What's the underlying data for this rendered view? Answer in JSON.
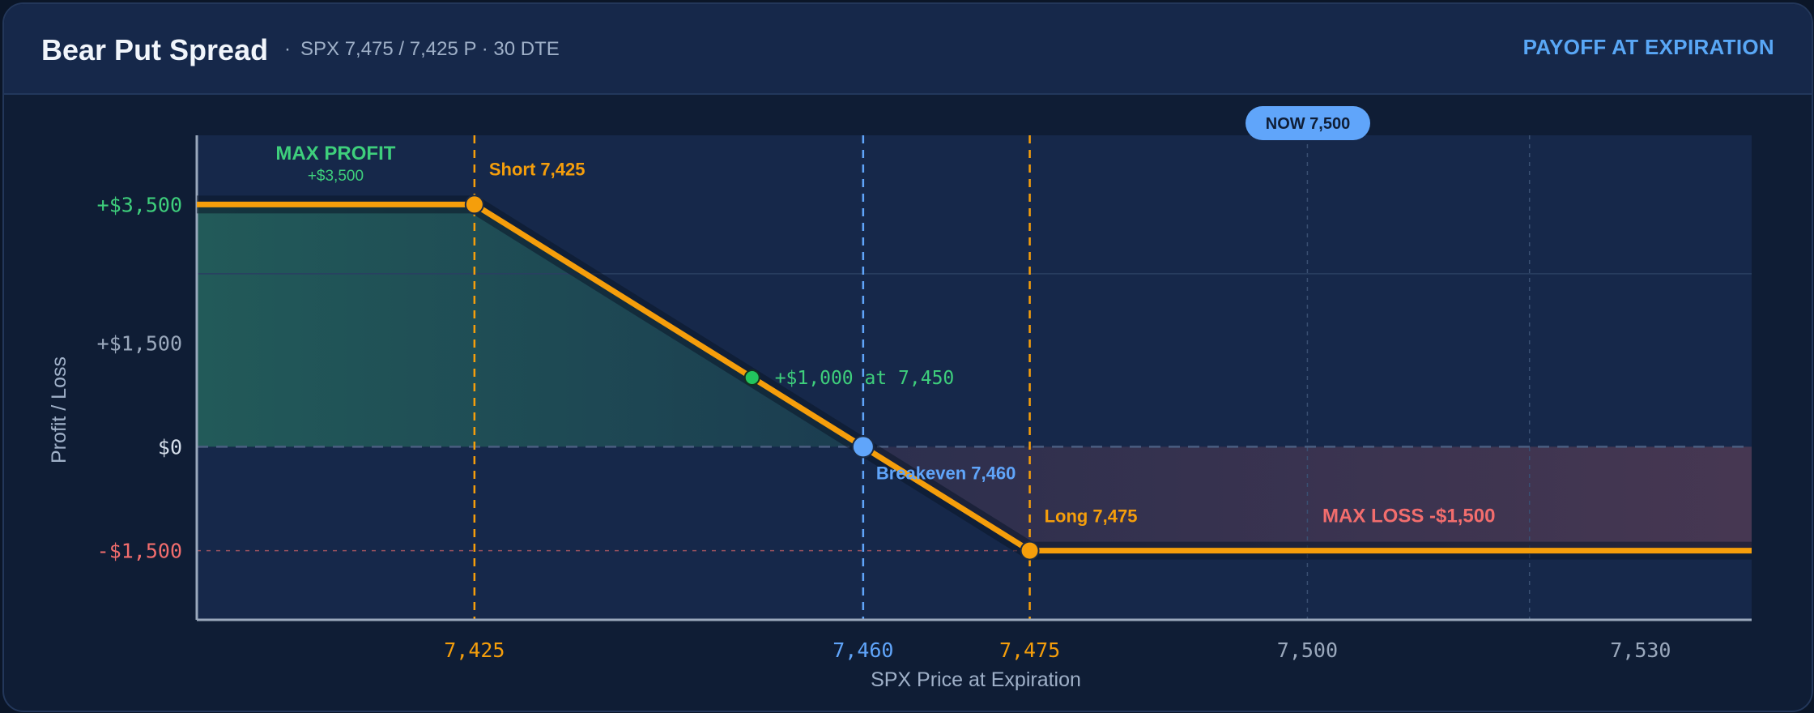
{
  "header": {
    "title": "Bear Put Spread",
    "subtitle_sep": "·",
    "subtitle": "SPX 7,475 / 7,425 P · 30 DTE",
    "mode": "PAYOFF AT EXPIRATION"
  },
  "colors": {
    "profit": "#3ecf7c",
    "loss": "#f26d6d",
    "payoff_line": "#f59e0b",
    "breakeven": "#60a5fa",
    "axis_text": "#d5deea"
  },
  "chart_data": {
    "type": "line",
    "title": "",
    "xlabel": "SPX Price at Expiration",
    "ylabel": "Profit / Loss",
    "x_range": [
      7400,
      7540
    ],
    "y_range": [
      -2500,
      4500
    ],
    "grid": true,
    "series": [
      {
        "points": [
          [
            7400,
            3500
          ],
          [
            7425,
            3500
          ],
          [
            7475,
            -1500
          ],
          [
            7540,
            -1500
          ]
        ]
      }
    ],
    "x_ticks": [
      {
        "value": 7425,
        "label": "7,425",
        "color": "#f59e0b"
      },
      {
        "value": 7460,
        "label": "7,460",
        "color": "#60a5fa"
      },
      {
        "value": 7475,
        "label": "7,475",
        "color": "#f59e0b"
      },
      {
        "value": 7500,
        "label": "7,500",
        "color": "#9aa8bc"
      },
      {
        "value": 7530,
        "label": "7,530",
        "color": "#9aa8bc"
      }
    ],
    "y_ticks": [
      {
        "value": 3500,
        "label": "+$3,500",
        "color": "#3ecf7c"
      },
      {
        "value": 1500,
        "label": "+$1,500",
        "color": "#9aa8bc"
      },
      {
        "value": 0,
        "label": "$0",
        "color": "#d5deea"
      },
      {
        "value": -1500,
        "label": "-$1,500",
        "color": "#f26d6d"
      }
    ],
    "strikes": [
      {
        "x": 7425,
        "y": 3500,
        "label": "Short 7,425"
      },
      {
        "x": 7475,
        "y": -1500,
        "label": "Long 7,475"
      }
    ],
    "breakeven": {
      "x": 7460,
      "y": 0,
      "label": "Breakeven 7,460"
    },
    "sample_point": {
      "x": 7450,
      "y": 1000,
      "label": "+$1,000 at 7,450"
    },
    "current": {
      "x": 7500,
      "label": "NOW 7,500"
    },
    "max_profit": {
      "title": "MAX PROFIT",
      "value": "+$3,500"
    },
    "max_loss": {
      "label": "MAX LOSS  -$1,500"
    }
  }
}
